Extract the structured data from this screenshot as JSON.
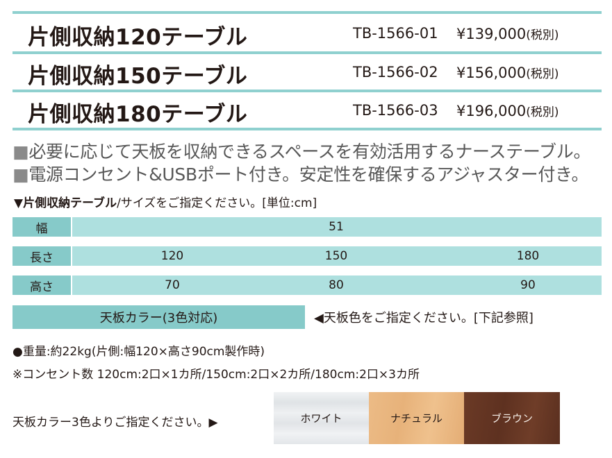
{
  "products": [
    {
      "name": "片側収納120テーブル",
      "code": "TB-1566-01",
      "price": "¥139,000",
      "tax": "(税別)"
    },
    {
      "name": "片側収納150テーブル",
      "code": "TB-1566-02",
      "price": "¥156,000",
      "tax": "(税別)"
    },
    {
      "name": "片側収納180テーブル",
      "code": "TB-1566-03",
      "price": "¥196,000",
      "tax": "(税別)"
    }
  ],
  "features": {
    "bullet": "■",
    "line1": "必要に応じて天板を収納できるスペースを有効活用するナーステーブル。",
    "line2": "電源コンセント&USBポート付き。安定性を確保するアジャスター付き。"
  },
  "size_heading": {
    "marker": "▼",
    "bold": "片側収納テーブル",
    "rest": "/サイズをご指定ください。[単位:cm]"
  },
  "size_table": {
    "width_label": "幅",
    "width_value": "51",
    "length_label": "長さ",
    "lengths": [
      "120",
      "150",
      "180"
    ],
    "height_label": "高さ",
    "heights": [
      "70",
      "80",
      "90"
    ]
  },
  "color_option": {
    "label": "天板カラー(3色対応)",
    "note": "◀天板色をご指定ください。[下記参照]"
  },
  "weight": "●重量:約22kg(片側:幅120×高さ90cm製作時)",
  "outlets": "※コンセント数 120cm:2口×1カ所/150cm:2口×2カ所/180cm:2口×3カ所",
  "swatches": {
    "label": "天板カラー3色よりご指定ください。▶",
    "items": [
      {
        "name": "ホワイト",
        "color": "#e9ecef"
      },
      {
        "name": "ナチュラル",
        "color": "#e9b67f"
      },
      {
        "name": "ブラウン",
        "color": "#643624"
      }
    ]
  }
}
